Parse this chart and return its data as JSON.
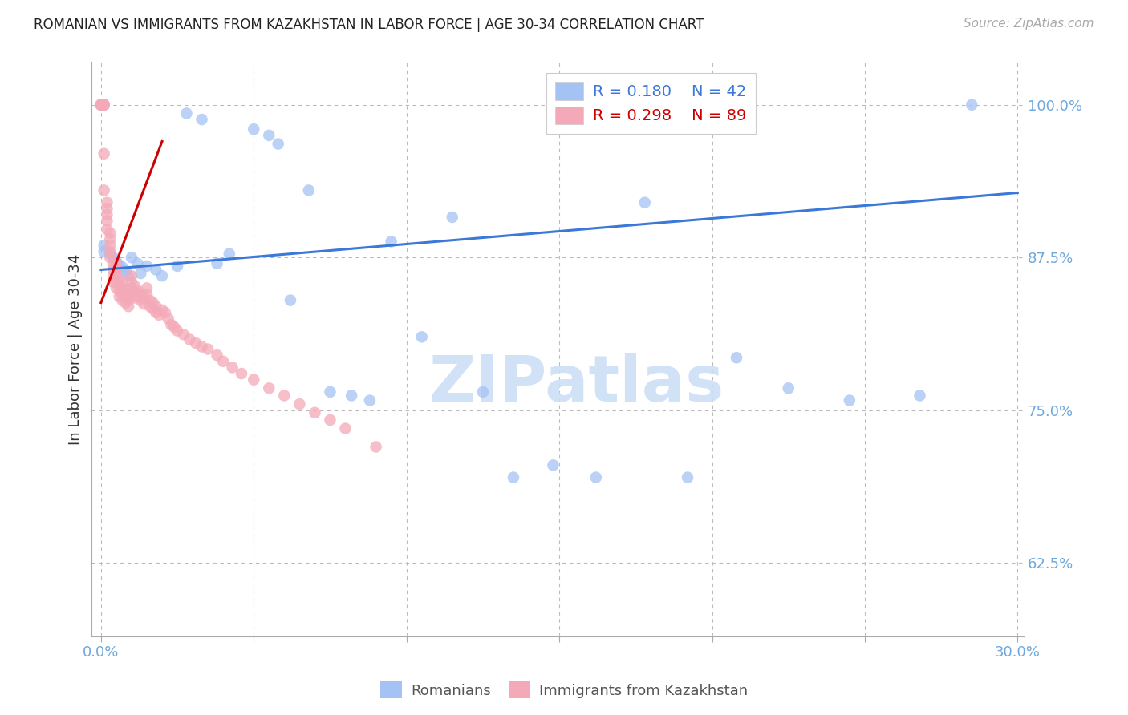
{
  "title": "ROMANIAN VS IMMIGRANTS FROM KAZAKHSTAN IN LABOR FORCE | AGE 30-34 CORRELATION CHART",
  "source": "Source: ZipAtlas.com",
  "ylabel": "In Labor Force | Age 30-34",
  "watermark": "ZIPatlas",
  "xlim": [
    -0.003,
    0.302
  ],
  "ylim": [
    0.565,
    1.035
  ],
  "yticks": [
    0.625,
    0.75,
    0.875,
    1.0
  ],
  "ytick_labels": [
    "62.5%",
    "75.0%",
    "87.5%",
    "100.0%"
  ],
  "xticks": [
    0.0,
    0.05,
    0.1,
    0.15,
    0.2,
    0.25,
    0.3
  ],
  "xtick_labels": [
    "0.0%",
    "",
    "",
    "",
    "",
    "",
    "30.0%"
  ],
  "blue_R": 0.18,
  "blue_N": 42,
  "pink_R": 0.298,
  "pink_N": 89,
  "blue_color": "#a4c2f4",
  "pink_color": "#f4a9b8",
  "blue_line_color": "#3c78d8",
  "pink_line_color": "#cc0000",
  "axis_color": "#6fa8dc",
  "grid_color": "#bbbbbb",
  "title_color": "#222222",
  "blue_points_x": [
    0.001,
    0.001,
    0.003,
    0.004,
    0.005,
    0.006,
    0.007,
    0.008,
    0.009,
    0.01,
    0.012,
    0.013,
    0.015,
    0.018,
    0.02,
    0.025,
    0.028,
    0.033,
    0.038,
    0.042,
    0.05,
    0.055,
    0.058,
    0.062,
    0.068,
    0.075,
    0.082,
    0.088,
    0.095,
    0.105,
    0.115,
    0.125,
    0.135,
    0.148,
    0.162,
    0.178,
    0.192,
    0.208,
    0.225,
    0.245,
    0.268,
    0.285
  ],
  "blue_points_y": [
    0.885,
    0.88,
    0.878,
    0.875,
    0.872,
    0.869,
    0.867,
    0.864,
    0.86,
    0.875,
    0.87,
    0.862,
    0.868,
    0.865,
    0.86,
    0.868,
    0.993,
    0.988,
    0.87,
    0.878,
    0.98,
    0.975,
    0.968,
    0.84,
    0.93,
    0.765,
    0.762,
    0.758,
    0.888,
    0.81,
    0.908,
    0.765,
    0.695,
    0.705,
    0.695,
    0.92,
    0.695,
    0.793,
    0.768,
    0.758,
    0.762,
    1.0
  ],
  "pink_points_x": [
    0.0,
    0.0,
    0.0,
    0.0,
    0.0,
    0.001,
    0.001,
    0.001,
    0.001,
    0.001,
    0.001,
    0.002,
    0.002,
    0.002,
    0.002,
    0.002,
    0.003,
    0.003,
    0.003,
    0.003,
    0.003,
    0.004,
    0.004,
    0.004,
    0.004,
    0.005,
    0.005,
    0.005,
    0.005,
    0.005,
    0.006,
    0.006,
    0.006,
    0.006,
    0.007,
    0.007,
    0.007,
    0.007,
    0.008,
    0.008,
    0.008,
    0.009,
    0.009,
    0.009,
    0.01,
    0.01,
    0.01,
    0.01,
    0.011,
    0.011,
    0.011,
    0.012,
    0.012,
    0.013,
    0.013,
    0.014,
    0.014,
    0.015,
    0.015,
    0.016,
    0.016,
    0.017,
    0.017,
    0.018,
    0.018,
    0.019,
    0.02,
    0.021,
    0.022,
    0.023,
    0.024,
    0.025,
    0.027,
    0.029,
    0.031,
    0.033,
    0.035,
    0.038,
    0.04,
    0.043,
    0.046,
    0.05,
    0.055,
    0.06,
    0.065,
    0.07,
    0.075,
    0.08,
    0.09
  ],
  "pink_points_y": [
    1.0,
    1.0,
    1.0,
    1.0,
    1.0,
    1.0,
    1.0,
    1.0,
    1.0,
    0.96,
    0.93,
    0.92,
    0.915,
    0.91,
    0.905,
    0.898,
    0.895,
    0.89,
    0.885,
    0.88,
    0.875,
    0.87,
    0.865,
    0.86,
    0.855,
    0.87,
    0.865,
    0.86,
    0.855,
    0.85,
    0.858,
    0.853,
    0.848,
    0.843,
    0.855,
    0.85,
    0.845,
    0.84,
    0.848,
    0.843,
    0.838,
    0.845,
    0.84,
    0.835,
    0.86,
    0.855,
    0.85,
    0.845,
    0.852,
    0.847,
    0.842,
    0.848,
    0.843,
    0.845,
    0.84,
    0.842,
    0.837,
    0.85,
    0.845,
    0.84,
    0.835,
    0.838,
    0.833,
    0.835,
    0.83,
    0.828,
    0.832,
    0.83,
    0.825,
    0.82,
    0.818,
    0.815,
    0.812,
    0.808,
    0.805,
    0.802,
    0.8,
    0.795,
    0.79,
    0.785,
    0.78,
    0.775,
    0.768,
    0.762,
    0.755,
    0.748,
    0.742,
    0.735,
    0.72
  ]
}
